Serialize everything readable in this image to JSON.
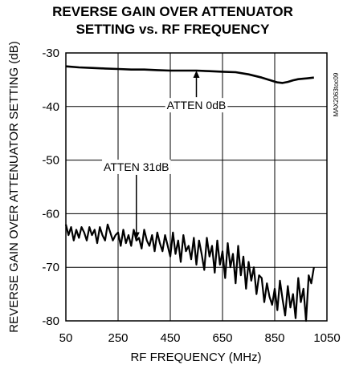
{
  "chart_data": {
    "type": "line",
    "title_line1": "REVERSE GAIN OVER ATTENUATOR",
    "title_line2": "SETTING vs. RF FREQUENCY",
    "xlabel": "RF FREQUENCY (MHz)",
    "ylabel": "REVERSE GAIN OVER ATTENUATOR SETTING (dB)",
    "xlim": [
      50,
      1050
    ],
    "ylim": [
      -80,
      -30
    ],
    "x_ticks": [
      50,
      250,
      450,
      650,
      850,
      1050
    ],
    "y_ticks": [
      -30,
      -40,
      -50,
      -60,
      -70,
      -80
    ],
    "grid": true,
    "series": [
      {
        "name": "ATTEN 0dB",
        "x": [
          50,
          100,
          150,
          200,
          250,
          300,
          350,
          400,
          450,
          500,
          550,
          600,
          650,
          700,
          750,
          800,
          820,
          840,
          860,
          880,
          900,
          920,
          940,
          960,
          980,
          1000
        ],
        "values": [
          -32.5,
          -32.7,
          -32.8,
          -32.9,
          -33.0,
          -33.1,
          -33.1,
          -33.2,
          -33.3,
          -33.3,
          -33.3,
          -33.4,
          -33.5,
          -33.6,
          -34.0,
          -34.6,
          -34.9,
          -35.2,
          -35.5,
          -35.6,
          -35.4,
          -35.1,
          -34.9,
          -34.8,
          -34.7,
          -34.6
        ]
      },
      {
        "name": "ATTEN 31dB",
        "x": [
          50,
          60,
          70,
          80,
          90,
          100,
          110,
          120,
          130,
          140,
          150,
          160,
          170,
          180,
          190,
          200,
          210,
          220,
          230,
          240,
          250,
          260,
          270,
          280,
          290,
          300,
          310,
          320,
          330,
          340,
          350,
          360,
          370,
          380,
          390,
          400,
          410,
          420,
          430,
          440,
          450,
          460,
          470,
          480,
          490,
          500,
          510,
          520,
          530,
          540,
          550,
          560,
          570,
          580,
          590,
          600,
          610,
          620,
          630,
          640,
          650,
          660,
          670,
          680,
          690,
          700,
          710,
          720,
          730,
          740,
          750,
          760,
          770,
          780,
          790,
          800,
          810,
          820,
          830,
          840,
          850,
          860,
          870,
          880,
          890,
          900,
          910,
          920,
          930,
          940,
          950,
          960,
          970,
          980,
          990,
          1000
        ],
        "values": [
          -62,
          -64,
          -62.5,
          -65,
          -63,
          -64.5,
          -62.5,
          -63.5,
          -65,
          -62.5,
          -64,
          -63,
          -65.5,
          -62.5,
          -64,
          -65,
          -62,
          -63.5,
          -65,
          -64,
          -63.5,
          -66,
          -63,
          -65.5,
          -64,
          -66,
          -63,
          -65,
          -64.5,
          -66.5,
          -63,
          -65,
          -66,
          -64,
          -67,
          -63.5,
          -65.5,
          -67,
          -64,
          -66,
          -68,
          -63.5,
          -67.5,
          -65,
          -69,
          -64,
          -67,
          -66,
          -68.5,
          -64.5,
          -69.5,
          -65,
          -67.5,
          -70.5,
          -64.5,
          -68,
          -66,
          -71,
          -65,
          -69.5,
          -67,
          -72,
          -65.5,
          -70,
          -67.5,
          -73,
          -66,
          -71.5,
          -68,
          -74,
          -69,
          -72.5,
          -70,
          -75,
          -71.5,
          -72,
          -76.5,
          -73,
          -75.5,
          -77,
          -74,
          -78,
          -72.5,
          -76,
          -79,
          -73.5,
          -77.5,
          -75,
          -79.5,
          -72,
          -76.5,
          -74,
          -80,
          -71.5,
          -73,
          -70
        ]
      }
    ],
    "annotations": [
      {
        "text": "ATTEN 0dB",
        "x": 550,
        "y": -40.5,
        "arrow_to_y": -33.3
      },
      {
        "text": "ATTEN 31dB",
        "x": 320,
        "y": -52,
        "arrow_to_y": -64.8
      }
    ],
    "watermark": "MAX2063toc09"
  }
}
